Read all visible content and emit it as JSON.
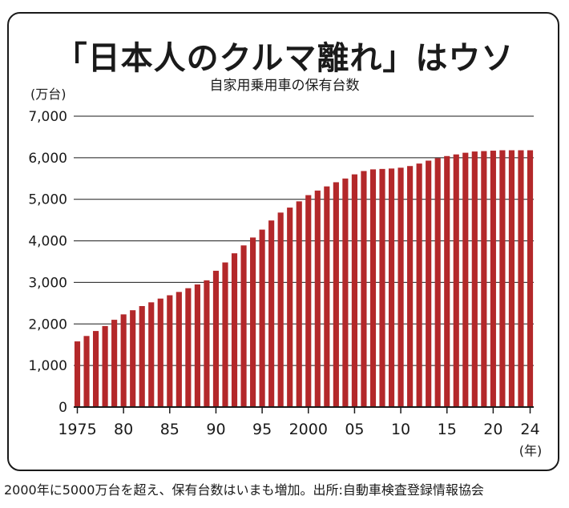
{
  "chart": {
    "title": "「日本人のクルマ離れ」はウソ",
    "subtitle": "自家用乗用車の保有台数"
  },
  "footnote": "2000年に5000万台を超え、保有台数はいまも増加。出所:自動車検査登録情報協会",
  "colors": {
    "bar": "#b3282a",
    "axis": "#1a1a1a",
    "grid": "#1a1a1a"
  },
  "chart_data": {
    "type": "bar",
    "title": "「日本人のクルマ離れ」はウソ",
    "subtitle": "自家用乗用車の保有台数",
    "ylabel": "(万台)",
    "xlabel": "(年)",
    "ylim": [
      0,
      7000
    ],
    "yticks": [
      0,
      1000,
      2000,
      3000,
      4000,
      5000,
      6000,
      7000
    ],
    "ytick_labels": [
      "0",
      "1,000",
      "2,000",
      "3,000",
      "4,000",
      "5,000",
      "6,000",
      "7,000"
    ],
    "grid": true,
    "categories": [
      1975,
      1976,
      1977,
      1978,
      1979,
      1980,
      1981,
      1982,
      1983,
      1984,
      1985,
      1986,
      1987,
      1988,
      1989,
      1990,
      1991,
      1992,
      1993,
      1994,
      1995,
      1996,
      1997,
      1998,
      1999,
      2000,
      2001,
      2002,
      2003,
      2004,
      2005,
      2006,
      2007,
      2008,
      2009,
      2010,
      2011,
      2012,
      2013,
      2014,
      2015,
      2016,
      2017,
      2018,
      2019,
      2020,
      2021,
      2022,
      2023,
      2024
    ],
    "xtick_labels": [
      {
        "year": 1975,
        "label": "1975"
      },
      {
        "year": 1980,
        "label": "80"
      },
      {
        "year": 1985,
        "label": "85"
      },
      {
        "year": 1990,
        "label": "90"
      },
      {
        "year": 1995,
        "label": "95"
      },
      {
        "year": 2000,
        "label": "2000"
      },
      {
        "year": 2005,
        "label": "05"
      },
      {
        "year": 2010,
        "label": "10"
      },
      {
        "year": 2015,
        "label": "15"
      },
      {
        "year": 2020,
        "label": "20"
      },
      {
        "year": 2024,
        "label": "24"
      }
    ],
    "values": [
      1580,
      1710,
      1830,
      1950,
      2100,
      2230,
      2330,
      2430,
      2520,
      2610,
      2690,
      2770,
      2860,
      2950,
      3050,
      3280,
      3480,
      3700,
      3890,
      4080,
      4270,
      4490,
      4680,
      4800,
      4950,
      5100,
      5210,
      5310,
      5410,
      5500,
      5600,
      5680,
      5720,
      5730,
      5740,
      5760,
      5800,
      5860,
      5930,
      5990,
      6040,
      6080,
      6120,
      6150,
      6160,
      6170,
      6180,
      6180,
      6180,
      6180
    ]
  }
}
